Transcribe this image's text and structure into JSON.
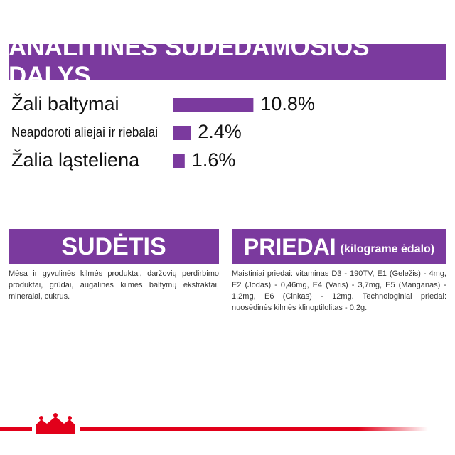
{
  "chart_data": {
    "type": "bar",
    "orientation": "horizontal",
    "title": "ANALITINĖS SUDEDAMOSIOS DALYS",
    "categories": [
      "Žali baltymai",
      "Neapdoroti aliejai ir riebalai",
      "Žalia ląsteliena"
    ],
    "values": [
      10.8,
      2.4,
      1.6
    ],
    "value_labels": [
      "10.8%",
      "2.4%",
      "1.6%"
    ],
    "color": "#7b3a9e"
  },
  "composition": {
    "title": "SUDĖTIS",
    "text": "Mėsa ir gyvulinės kilmės produktai, daržovių perdirbimo produktai, grūdai, augalinės kilmės baltymų ekstraktai, mineralai, cukrus."
  },
  "additives": {
    "title": "PRIEDAI",
    "subtitle": "(kilograme ėdalo)",
    "text": "Maistiniai priedai: vitaminas D3 - 190TV, E1 (Geležis) - 4mg, E2 (Jodas) - 0,46mg, E4 (Varis) - 3,7mg, E5 (Manganas) - 1,2mg, E6 (Cinkas) - 12mg. Technologiniai priedai: nuosėdinės kilmės klinoptilolitas - 0,2g."
  }
}
